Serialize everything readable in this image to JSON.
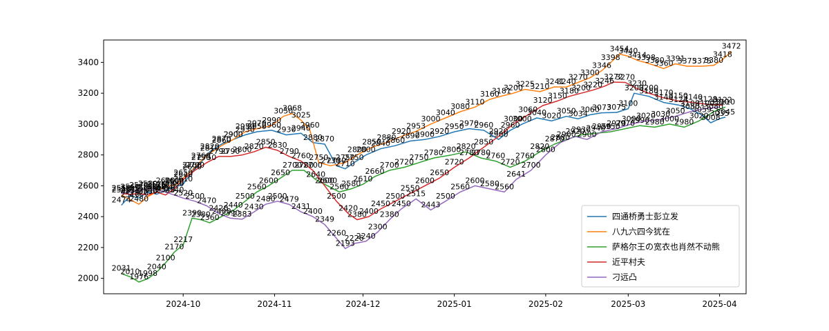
{
  "chart_data": {
    "type": "line",
    "title": "",
    "xlabel": "",
    "ylabel": "",
    "x_ticks": [
      "2024-10",
      "2024-11",
      "2024-12",
      "2025-01",
      "2025-02",
      "2025-03",
      "2025-04"
    ],
    "y_ticks": [
      2000,
      2200,
      2400,
      2600,
      2800,
      3000,
      3200,
      3400
    ],
    "xlim": [
      "2024-09-04",
      "2025-04-10"
    ],
    "ylim": [
      1900,
      3545
    ],
    "grid": false,
    "legend_position": "lower right",
    "series": [
      {
        "name": "四通桥勇士彭立发",
        "color": "#1f77b4",
        "points": [
          [
            "2024-09-10",
            2474
          ],
          [
            "2024-09-13",
            2535
          ],
          [
            "2024-09-16",
            2520
          ],
          [
            "2024-09-19",
            2560
          ],
          [
            "2024-09-22",
            2545
          ],
          [
            "2024-09-25",
            2570
          ],
          [
            "2024-09-28",
            2590
          ],
          [
            "2024-10-01",
            2610
          ],
          [
            "2024-10-04",
            2690
          ],
          [
            "2024-10-07",
            2750
          ],
          [
            "2024-10-10",
            2820
          ],
          [
            "2024-10-14",
            2870
          ],
          [
            "2024-10-18",
            2900
          ],
          [
            "2024-10-22",
            2930
          ],
          [
            "2024-10-26",
            2950
          ],
          [
            "2024-10-31",
            2960
          ],
          [
            "2024-11-05",
            2930
          ],
          [
            "2024-11-10",
            2940
          ],
          [
            "2024-11-14",
            2880
          ],
          [
            "2024-11-18",
            2870
          ],
          [
            "2024-11-22",
            2730
          ],
          [
            "2024-11-25",
            2710
          ],
          [
            "2024-11-28",
            2750
          ],
          [
            "2024-12-02",
            2800
          ],
          [
            "2024-12-07",
            2840
          ],
          [
            "2024-12-12",
            2860
          ],
          [
            "2024-12-17",
            2890
          ],
          [
            "2024-12-22",
            2900
          ],
          [
            "2024-12-27",
            2920
          ],
          [
            "2025-01-01",
            2950
          ],
          [
            "2025-01-06",
            2970
          ],
          [
            "2025-01-11",
            2960
          ],
          [
            "2025-01-16",
            2900
          ],
          [
            "2025-01-20",
            2960
          ],
          [
            "2025-01-24",
            3000
          ],
          [
            "2025-01-29",
            3040
          ],
          [
            "2025-02-03",
            3020
          ],
          [
            "2025-02-08",
            3050
          ],
          [
            "2025-02-12",
            3034
          ],
          [
            "2025-02-16",
            3060
          ],
          [
            "2025-02-20",
            3073
          ],
          [
            "2025-02-25",
            3075
          ],
          [
            "2025-03-01",
            3100
          ],
          [
            "2025-03-03",
            3200
          ],
          [
            "2025-03-08",
            3180
          ],
          [
            "2025-03-13",
            3140
          ],
          [
            "2025-03-18",
            3124
          ],
          [
            "2025-03-22",
            3100
          ],
          [
            "2025-03-26",
            3059
          ],
          [
            "2025-03-29",
            3008
          ],
          [
            "2025-04-01",
            3035
          ],
          [
            "2025-04-03",
            3045
          ]
        ]
      },
      {
        "name": "八九六四今犹在",
        "color": "#ff7f0e",
        "points": [
          [
            "2024-09-10",
            2540
          ],
          [
            "2024-09-13",
            2510
          ],
          [
            "2024-09-16",
            2480
          ],
          [
            "2024-09-19",
            2530
          ],
          [
            "2024-09-22",
            2560
          ],
          [
            "2024-09-25",
            2600
          ],
          [
            "2024-09-28",
            2600
          ],
          [
            "2024-10-01",
            2650
          ],
          [
            "2024-10-04",
            2700
          ],
          [
            "2024-10-07",
            2760
          ],
          [
            "2024-10-10",
            2810
          ],
          [
            "2024-10-14",
            2860
          ],
          [
            "2024-10-18",
            2900
          ],
          [
            "2024-10-22",
            2950
          ],
          [
            "2024-10-26",
            2970
          ],
          [
            "2024-10-31",
            2990
          ],
          [
            "2024-11-04",
            3050
          ],
          [
            "2024-11-07",
            3068
          ],
          [
            "2024-11-10",
            3025
          ],
          [
            "2024-11-13",
            2960
          ],
          [
            "2024-11-16",
            2750
          ],
          [
            "2024-11-20",
            2730
          ],
          [
            "2024-11-25",
            2750
          ],
          [
            "2024-11-29",
            2800
          ],
          [
            "2024-12-04",
            2850
          ],
          [
            "2024-12-09",
            2880
          ],
          [
            "2024-12-14",
            2920
          ],
          [
            "2024-12-19",
            2953
          ],
          [
            "2024-12-24",
            3000
          ],
          [
            "2024-12-29",
            3040
          ],
          [
            "2025-01-03",
            3080
          ],
          [
            "2025-01-08",
            3110
          ],
          [
            "2025-01-13",
            3160
          ],
          [
            "2025-01-17",
            3181
          ],
          [
            "2025-01-21",
            3200
          ],
          [
            "2025-01-25",
            3225
          ],
          [
            "2025-01-30",
            3210
          ],
          [
            "2025-02-04",
            3241
          ],
          [
            "2025-02-08",
            3240
          ],
          [
            "2025-02-12",
            3270
          ],
          [
            "2025-02-16",
            3300
          ],
          [
            "2025-02-20",
            3346
          ],
          [
            "2025-02-23",
            3398
          ],
          [
            "2025-02-26",
            3454
          ],
          [
            "2025-03-01",
            3440
          ],
          [
            "2025-03-04",
            3414
          ],
          [
            "2025-03-07",
            3398
          ],
          [
            "2025-03-10",
            3380
          ],
          [
            "2025-03-13",
            3360
          ],
          [
            "2025-03-17",
            3391
          ],
          [
            "2025-03-21",
            3375
          ],
          [
            "2025-03-26",
            3375
          ],
          [
            "2025-03-30",
            3380
          ],
          [
            "2025-04-02",
            3418
          ],
          [
            "2025-04-05",
            3472
          ]
        ]
      },
      {
        "name": "萨格尔王の宽衣也肖然不动熊",
        "color": "#2ca02c",
        "points": [
          [
            "2024-09-10",
            2031
          ],
          [
            "2024-09-13",
            2010
          ],
          [
            "2024-09-16",
            1976
          ],
          [
            "2024-09-19",
            1998
          ],
          [
            "2024-09-22",
            2040
          ],
          [
            "2024-09-25",
            2100
          ],
          [
            "2024-09-28",
            2170
          ],
          [
            "2024-10-01",
            2217
          ],
          [
            "2024-10-04",
            2390
          ],
          [
            "2024-10-07",
            2380
          ],
          [
            "2024-10-10",
            2360
          ],
          [
            "2024-10-14",
            2400
          ],
          [
            "2024-10-18",
            2440
          ],
          [
            "2024-10-22",
            2500
          ],
          [
            "2024-10-26",
            2560
          ],
          [
            "2024-10-30",
            2600
          ],
          [
            "2024-11-03",
            2650
          ],
          [
            "2024-11-07",
            2700
          ],
          [
            "2024-11-11",
            2700
          ],
          [
            "2024-11-15",
            2640
          ],
          [
            "2024-11-19",
            2600
          ],
          [
            "2024-11-23",
            2560
          ],
          [
            "2024-11-27",
            2580
          ],
          [
            "2024-12-01",
            2610
          ],
          [
            "2024-12-05",
            2660
          ],
          [
            "2024-12-10",
            2700
          ],
          [
            "2024-12-15",
            2720
          ],
          [
            "2024-12-20",
            2750
          ],
          [
            "2024-12-25",
            2780
          ],
          [
            "2024-12-31",
            2800
          ],
          [
            "2025-01-05",
            2820
          ],
          [
            "2025-01-10",
            2780
          ],
          [
            "2025-01-15",
            2760
          ],
          [
            "2025-01-20",
            2720
          ],
          [
            "2025-01-25",
            2760
          ],
          [
            "2025-01-30",
            2820
          ],
          [
            "2025-02-04",
            2870
          ],
          [
            "2025-02-08",
            2900
          ],
          [
            "2025-02-13",
            2930
          ],
          [
            "2025-02-18",
            2940
          ],
          [
            "2025-02-23",
            2950
          ],
          [
            "2025-02-28",
            2970
          ],
          [
            "2025-03-05",
            2990
          ],
          [
            "2025-03-10",
            2980
          ],
          [
            "2025-03-15",
            3000
          ],
          [
            "2025-03-20",
            2980
          ],
          [
            "2025-03-25",
            3020
          ],
          [
            "2025-03-30",
            3080
          ],
          [
            "2025-04-03",
            3110
          ]
        ]
      },
      {
        "name": "近平村夫",
        "color": "#d62728",
        "points": [
          [
            "2024-09-10",
            2550
          ],
          [
            "2024-09-13",
            2545
          ],
          [
            "2024-09-16",
            2550
          ],
          [
            "2024-09-19",
            2540
          ],
          [
            "2024-09-22",
            2560
          ],
          [
            "2024-09-25",
            2540
          ],
          [
            "2024-09-28",
            2580
          ],
          [
            "2024-10-01",
            2640
          ],
          [
            "2024-10-05",
            2700
          ],
          [
            "2024-10-09",
            2750
          ],
          [
            "2024-10-13",
            2790
          ],
          [
            "2024-10-17",
            2790
          ],
          [
            "2024-10-21",
            2800
          ],
          [
            "2024-10-25",
            2820
          ],
          [
            "2024-10-29",
            2850
          ],
          [
            "2024-11-02",
            2830
          ],
          [
            "2024-11-06",
            2790
          ],
          [
            "2024-11-10",
            2760
          ],
          [
            "2024-11-14",
            2700
          ],
          [
            "2024-11-18",
            2600
          ],
          [
            "2024-11-22",
            2500
          ],
          [
            "2024-11-26",
            2420
          ],
          [
            "2024-11-29",
            2380
          ],
          [
            "2024-12-03",
            2400
          ],
          [
            "2024-12-07",
            2450
          ],
          [
            "2024-12-12",
            2500
          ],
          [
            "2024-12-17",
            2550
          ],
          [
            "2024-12-22",
            2600
          ],
          [
            "2024-12-27",
            2650
          ],
          [
            "2025-01-01",
            2720
          ],
          [
            "2025-01-06",
            2780
          ],
          [
            "2025-01-11",
            2850
          ],
          [
            "2025-01-16",
            2920
          ],
          [
            "2025-01-21",
            3000
          ],
          [
            "2025-01-26",
            3060
          ],
          [
            "2025-01-31",
            3120
          ],
          [
            "2025-02-05",
            3150
          ],
          [
            "2025-02-09",
            3180
          ],
          [
            "2025-02-13",
            3200
          ],
          [
            "2025-02-17",
            3220
          ],
          [
            "2025-02-21",
            3246
          ],
          [
            "2025-02-24",
            3272
          ],
          [
            "2025-02-28",
            3270
          ],
          [
            "2025-03-04",
            3230
          ],
          [
            "2025-03-08",
            3200
          ],
          [
            "2025-03-13",
            3170
          ],
          [
            "2025-03-18",
            3150
          ],
          [
            "2025-03-23",
            3140
          ],
          [
            "2025-03-28",
            3128
          ],
          [
            "2025-04-02",
            3122
          ]
        ]
      },
      {
        "name": "刁远凸",
        "color": "#9467bd",
        "points": [
          [
            "2024-09-10",
            2550
          ],
          [
            "2024-09-13",
            2560
          ],
          [
            "2024-09-16",
            2570
          ],
          [
            "2024-09-19",
            2580
          ],
          [
            "2024-09-22",
            2575
          ],
          [
            "2024-09-25",
            2560
          ],
          [
            "2024-09-28",
            2540
          ],
          [
            "2024-10-01",
            2520
          ],
          [
            "2024-10-05",
            2500
          ],
          [
            "2024-10-09",
            2470
          ],
          [
            "2024-10-13",
            2420
          ],
          [
            "2024-10-17",
            2390
          ],
          [
            "2024-10-21",
            2383
          ],
          [
            "2024-10-25",
            2430
          ],
          [
            "2024-10-29",
            2480
          ],
          [
            "2024-11-02",
            2500
          ],
          [
            "2024-11-06",
            2479
          ],
          [
            "2024-11-10",
            2431
          ],
          [
            "2024-11-14",
            2400
          ],
          [
            "2024-11-18",
            2349
          ],
          [
            "2024-11-22",
            2260
          ],
          [
            "2024-11-25",
            2193
          ],
          [
            "2024-11-28",
            2226
          ],
          [
            "2024-12-02",
            2240
          ],
          [
            "2024-12-06",
            2300
          ],
          [
            "2024-12-10",
            2380
          ],
          [
            "2024-12-14",
            2450
          ],
          [
            "2024-12-19",
            2515
          ],
          [
            "2024-12-24",
            2443
          ],
          [
            "2024-12-29",
            2500
          ],
          [
            "2025-01-03",
            2560
          ],
          [
            "2025-01-08",
            2600
          ],
          [
            "2025-01-13",
            2580
          ],
          [
            "2025-01-18",
            2560
          ],
          [
            "2025-01-22",
            2641
          ],
          [
            "2025-01-27",
            2700
          ],
          [
            "2025-02-01",
            2800
          ],
          [
            "2025-02-06",
            2880
          ],
          [
            "2025-02-11",
            2920
          ],
          [
            "2025-02-15",
            2900
          ],
          [
            "2025-02-20",
            2950
          ],
          [
            "2025-02-25",
            2970
          ],
          [
            "2025-03-02",
            3000
          ],
          [
            "2025-03-07",
            3020
          ],
          [
            "2025-03-12",
            3030
          ],
          [
            "2025-03-17",
            3050
          ],
          [
            "2025-03-22",
            3080
          ],
          [
            "2025-03-27",
            3100
          ],
          [
            "2025-04-01",
            3110
          ]
        ]
      }
    ]
  }
}
